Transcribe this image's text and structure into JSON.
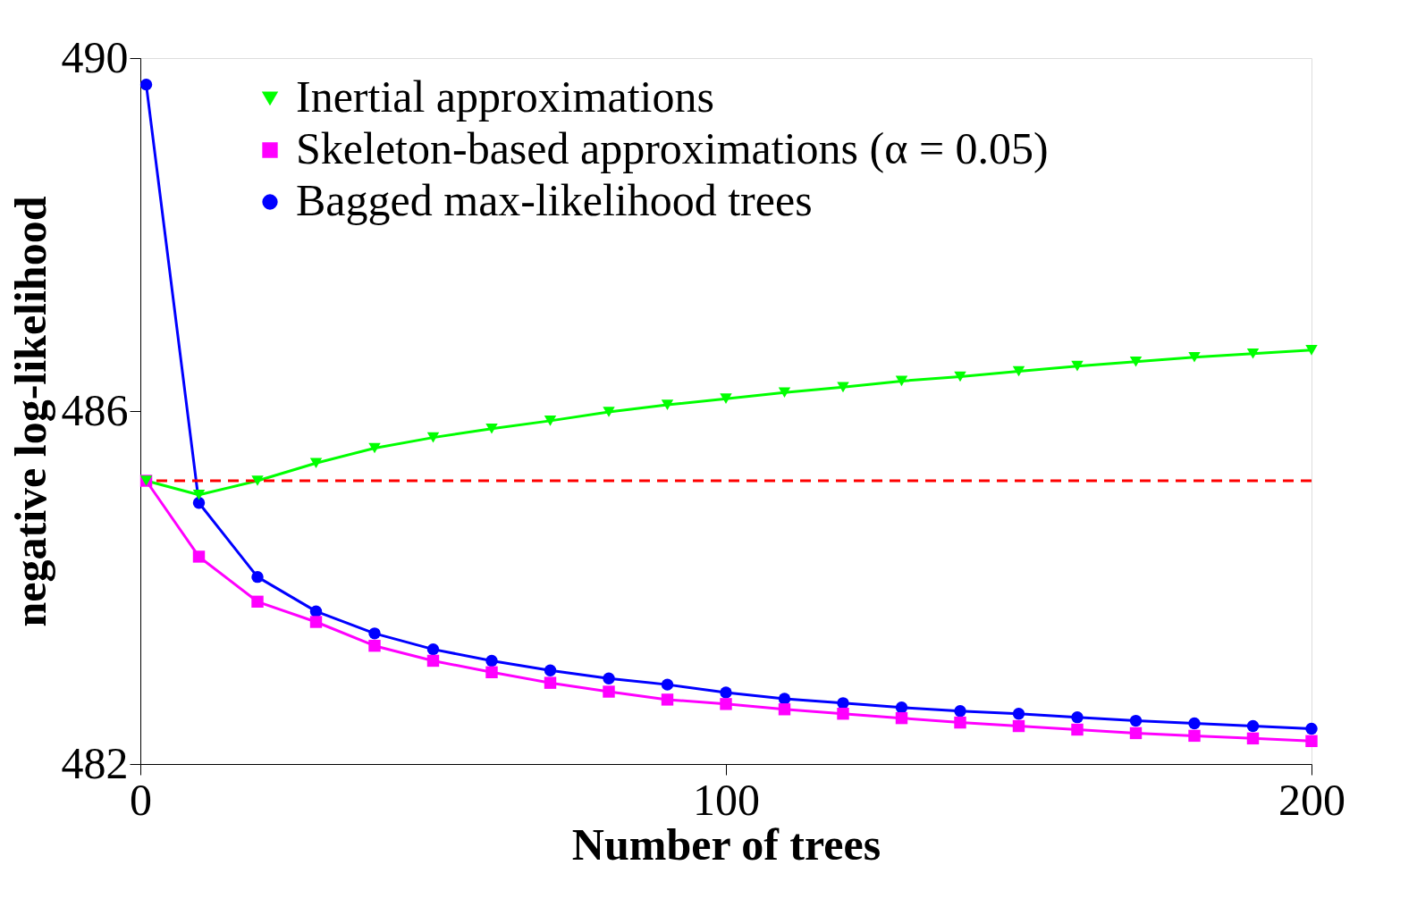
{
  "chart_data": {
    "type": "line",
    "xlabel": "Number of trees",
    "ylabel": "negative log-likelihood",
    "x": [
      1,
      10,
      20,
      30,
      40,
      50,
      60,
      70,
      80,
      90,
      100,
      110,
      120,
      130,
      140,
      150,
      160,
      170,
      180,
      190,
      200
    ],
    "series": [
      {
        "name": "Inertial approximations",
        "color": "#00ff00",
        "marker": "triangle",
        "values": [
          485.21,
          485.05,
          485.21,
          485.41,
          485.58,
          485.7,
          485.8,
          485.89,
          485.99,
          486.07,
          486.14,
          486.21,
          486.27,
          486.34,
          486.39,
          486.45,
          486.51,
          486.56,
          486.61,
          486.65,
          486.69
        ]
      },
      {
        "name": "Skeleton-based approximations (α = 0.05)",
        "color": "#ff00ff",
        "marker": "square",
        "values": [
          485.21,
          484.35,
          483.84,
          483.61,
          483.34,
          483.17,
          483.04,
          482.92,
          482.82,
          482.73,
          482.68,
          482.62,
          482.57,
          482.52,
          482.47,
          482.43,
          482.39,
          482.35,
          482.32,
          482.29,
          482.26
        ]
      },
      {
        "name": "Bagged max-likelihood trees",
        "color": "#0000ff",
        "marker": "circle",
        "values": [
          489.7,
          484.96,
          484.12,
          483.73,
          483.48,
          483.3,
          483.17,
          483.06,
          482.97,
          482.9,
          482.81,
          482.74,
          482.69,
          482.64,
          482.6,
          482.57,
          482.53,
          482.49,
          482.46,
          482.43,
          482.4
        ]
      }
    ],
    "xlim": [
      0,
      200
    ],
    "xticks": [
      0,
      100,
      200
    ],
    "ylim": [
      482,
      490
    ],
    "yticks": [
      482,
      486,
      490
    ],
    "ref_lines": [
      {
        "axis": "y",
        "value": 485.21,
        "color": "#ff0000",
        "line_style": "dashed"
      }
    ],
    "grid": false,
    "legend": "top left",
    "line_style": "solid"
  }
}
